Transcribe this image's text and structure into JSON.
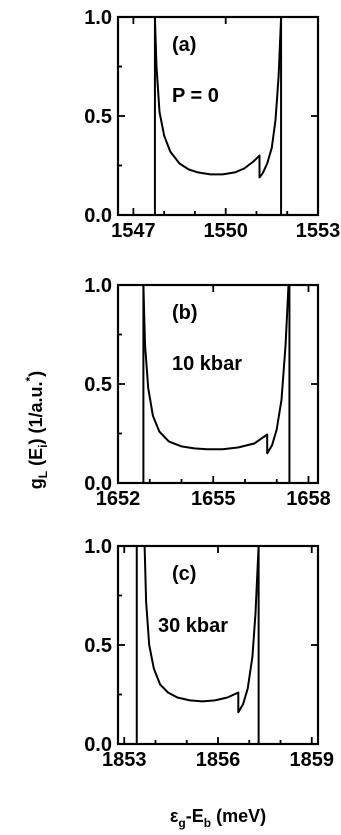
{
  "y_label": {
    "main": "g",
    "sub1": "L",
    "mid": " (E",
    "sub2": "i",
    "end": ") (1/a.u.",
    "sup": "*",
    "close": ")"
  },
  "x_label": {
    "main": "ε",
    "sub1": "g",
    "mid": "-E",
    "sub2": "b",
    "end": " (meV)"
  },
  "chart_data": [
    {
      "type": "line",
      "panel": "(a)",
      "annotation": "P = 0",
      "xlim": [
        1546.5,
        1553
      ],
      "ylim": [
        0,
        1.0
      ],
      "xticks": [
        1547,
        1550,
        1553
      ],
      "yticks": [
        0.0,
        0.5,
        1.0
      ],
      "band_edges": [
        1547.7,
        1551.8
      ],
      "curve": {
        "x": [
          1547.7,
          1547.75,
          1547.85,
          1548.0,
          1548.2,
          1548.5,
          1548.8,
          1549.1,
          1549.5,
          1549.9,
          1550.3,
          1550.6,
          1550.9,
          1551.1,
          1551.1,
          1551.2,
          1551.35,
          1551.5,
          1551.62,
          1551.72,
          1551.8
        ],
        "y": [
          1.0,
          0.75,
          0.52,
          0.4,
          0.32,
          0.26,
          0.23,
          0.215,
          0.205,
          0.205,
          0.215,
          0.235,
          0.27,
          0.3,
          0.19,
          0.21,
          0.26,
          0.34,
          0.48,
          0.7,
          1.0
        ]
      }
    },
    {
      "type": "line",
      "panel": "(b)",
      "annotation": "10 kbar",
      "xlim": [
        1652,
        1658.3
      ],
      "ylim": [
        0,
        1.0
      ],
      "xticks": [
        1652,
        1655,
        1658
      ],
      "yticks": [
        0.0,
        0.5,
        1.0
      ],
      "band_edges": [
        1652.8,
        1657.4
      ],
      "curve": {
        "x": [
          1652.8,
          1652.85,
          1652.95,
          1653.1,
          1653.3,
          1653.6,
          1654.0,
          1654.4,
          1654.8,
          1655.3,
          1655.8,
          1656.3,
          1656.7,
          1656.7,
          1656.85,
          1657.0,
          1657.15,
          1657.28,
          1657.37
        ],
        "y": [
          1.0,
          0.7,
          0.48,
          0.34,
          0.26,
          0.21,
          0.185,
          0.175,
          0.17,
          0.17,
          0.18,
          0.2,
          0.245,
          0.15,
          0.19,
          0.27,
          0.42,
          0.7,
          1.0
        ]
      }
    },
    {
      "type": "line",
      "panel": "(c)",
      "annotation": "30 kbar",
      "xlim": [
        1852.8,
        1859.2
      ],
      "ylim": [
        0,
        1.0
      ],
      "xticks": [
        1853,
        1856,
        1859
      ],
      "yticks": [
        0.0,
        0.5,
        1.0
      ],
      "band_edges": [
        1853.4,
        1857.3
      ],
      "curve": {
        "x": [
          1853.65,
          1853.7,
          1853.8,
          1853.95,
          1854.15,
          1854.4,
          1854.7,
          1855.1,
          1855.5,
          1855.9,
          1856.3,
          1856.65,
          1856.65,
          1856.8,
          1856.95,
          1857.1,
          1857.2,
          1857.3
        ],
        "y": [
          1.0,
          0.72,
          0.5,
          0.38,
          0.3,
          0.26,
          0.235,
          0.22,
          0.215,
          0.22,
          0.235,
          0.26,
          0.16,
          0.2,
          0.28,
          0.44,
          0.66,
          1.0
        ]
      }
    }
  ]
}
